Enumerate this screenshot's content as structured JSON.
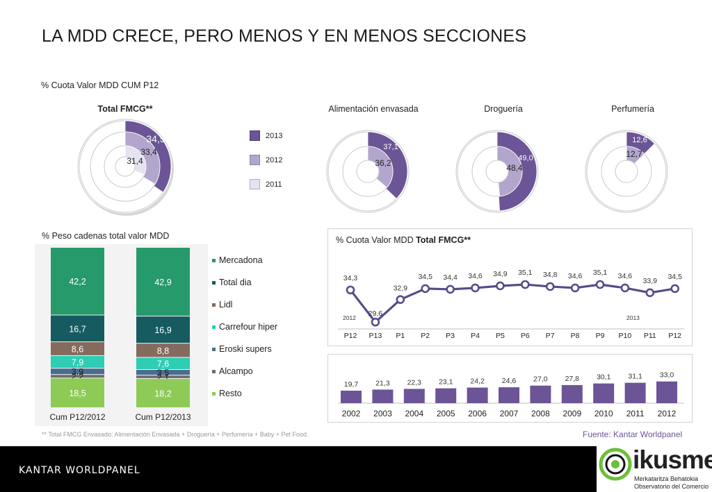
{
  "title": "LA MDD CRECE, PERO MENOS Y EN MENOS SECCIONES",
  "section_rings_title": "% Cuota Valor MDD CUM P12",
  "section_stack_title": "% Peso cadenas total valor MDD",
  "footnote": "** Total FMCG Envasado: Alimentación Envasada + Droguería + Perfumería + Baby + Pet Food.",
  "source": "Fuente: Kantar Worldpanel",
  "footer": {
    "kantar_logo": "KANTAR WORLDPANEL",
    "ikusmer_name": "ikusmer",
    "ikusmer_sub1": "Merkataritza Behatokia",
    "ikusmer_sub2": "Observatorio del Comercio"
  },
  "colors": {
    "y2013": "#6b5596",
    "y2012": "#b3a6cc",
    "y2011": "#e7e2f0",
    "mercadona": "#279a6b",
    "total_dia": "#165b5f",
    "lidl": "#846b5e",
    "carrefour": "#2ecdb4",
    "eroski": "#4a6c8f",
    "alcampo": "#6e6e6e",
    "resto": "#8dcb56",
    "line": "#5a4a8a",
    "bars": "#6b5596"
  },
  "chart_data": [
    {
      "type": "pie",
      "subtype": "concentric-rings",
      "ring_legend": [
        "2013",
        "2012",
        "2011"
      ],
      "charts": [
        {
          "title": "Total FMCG**",
          "values": {
            "2013": 34.5,
            "2012": 33.4,
            "2011": 31.4
          },
          "labels": [
            "34,5",
            "33,4",
            "31,4"
          ]
        },
        {
          "title": "Alimentación envasada",
          "values": {
            "2013": 37.1,
            "2012": 36.2
          },
          "labels": [
            "37,1",
            "36,2"
          ]
        },
        {
          "title": "Droguería",
          "values": {
            "2013": 49.0,
            "2012": 48.4
          },
          "labels": [
            "49,0",
            "48,4"
          ]
        },
        {
          "title": "Perfumería",
          "values": {
            "2013": 12.6,
            "2012": 12.7
          },
          "labels": [
            "12,6",
            "12,7"
          ]
        }
      ]
    },
    {
      "type": "bar",
      "subtype": "stacked-100",
      "title": "% Peso cadenas total valor MDD",
      "categories": [
        "Cum P12/2012",
        "Cum P12/2013"
      ],
      "series": [
        {
          "name": "Mercadona",
          "values": [
            42.2,
            42.9
          ],
          "labels": [
            "42,2",
            "42,9"
          ]
        },
        {
          "name": "Total dia",
          "values": [
            16.7,
            16.9
          ],
          "labels": [
            "16,7",
            "16,9"
          ]
        },
        {
          "name": "Lidl",
          "values": [
            8.6,
            8.8
          ],
          "labels": [
            "8,6",
            "8,8"
          ]
        },
        {
          "name": "Carrefour hiper",
          "values": [
            7.9,
            7.6
          ],
          "labels": [
            "7,9",
            "7,6"
          ]
        },
        {
          "name": "Eroski supers",
          "values": [
            3.9,
            3.5
          ],
          "labels": [
            "3,9",
            "3,5"
          ]
        },
        {
          "name": "Alcampo",
          "values": [
            2.2,
            2.1
          ],
          "labels": [
            "2,2",
            "2,1"
          ]
        },
        {
          "name": "Resto",
          "values": [
            18.5,
            18.2
          ],
          "labels": [
            "18,5",
            "18,2"
          ]
        }
      ]
    },
    {
      "type": "line",
      "title_prefix": "% Cuota Valor MDD ",
      "title_bold": "Total FMCG**",
      "x": [
        "P12",
        "P13",
        "P1",
        "P2",
        "P3",
        "P4",
        "P5",
        "P6",
        "P7",
        "P8",
        "P9",
        "P10",
        "P11",
        "P12"
      ],
      "values": [
        34.3,
        29.6,
        32.9,
        34.5,
        34.4,
        34.6,
        34.9,
        35.1,
        34.8,
        34.6,
        35.1,
        34.6,
        33.9,
        34.5
      ],
      "labels": [
        "34,3",
        "29,6",
        "32,9",
        "34,5",
        "34,4",
        "34,6",
        "34,9",
        "35,1",
        "34,8",
        "34,6",
        "35,1",
        "34,6",
        "33,9",
        "34,5"
      ],
      "annotations": [
        "2012",
        "2013"
      ]
    },
    {
      "type": "bar",
      "categories": [
        "2002",
        "2003",
        "2004",
        "2005",
        "2006",
        "2007",
        "2008",
        "2009",
        "2010",
        "2011",
        "2012"
      ],
      "values": [
        19.7,
        21.3,
        22.3,
        23.1,
        24.2,
        24.6,
        27.0,
        27.8,
        30.1,
        31.1,
        33.0
      ],
      "labels": [
        "19,7",
        "21,3",
        "22,3",
        "23,1",
        "24,2",
        "24,6",
        "27,0",
        "27,8",
        "30,1",
        "31,1",
        "33,0"
      ]
    }
  ]
}
